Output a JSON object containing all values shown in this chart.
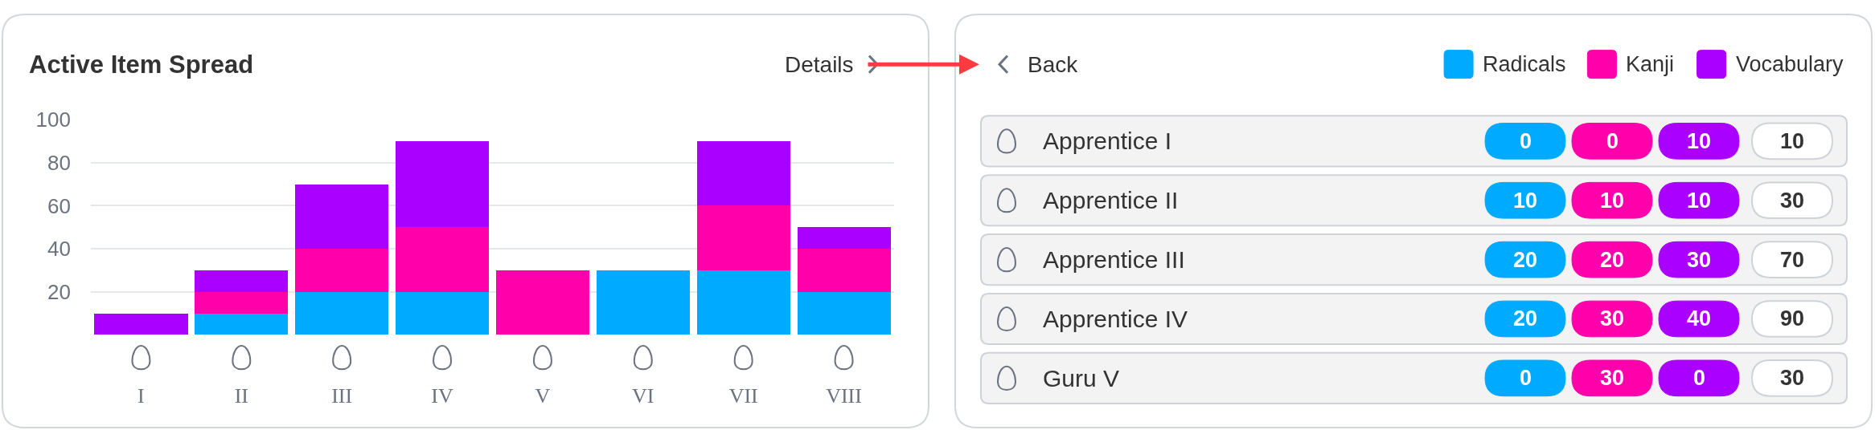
{
  "chart_data": [
    {
      "type": "bar",
      "title": "Active Item Spread",
      "annotations": [
        "Details"
      ],
      "categories": [
        "I",
        "II",
        "III",
        "IV",
        "V",
        "VI",
        "VII",
        "VIII"
      ],
      "stacked": true,
      "series": [
        {
          "color": "#00aaff",
          "values": [
            null,
            10,
            20,
            20,
            null,
            30,
            30,
            20
          ]
        },
        {
          "color": "#ff00aa",
          "values": [
            null,
            10,
            20,
            30,
            30,
            null,
            30,
            20
          ]
        },
        {
          "color": "#aa00ff",
          "values": [
            10,
            10,
            30,
            40,
            null,
            null,
            30,
            10
          ]
        }
      ],
      "ylim": [
        0,
        100
      ],
      "yticks": [
        20,
        40,
        60,
        80,
        100
      ],
      "grid": "y"
    },
    {
      "type": "other",
      "annotations": [
        "Back"
      ],
      "categories": [
        "Apprentice I",
        "Apprentice II",
        "Apprentice III",
        "Apprentice IV",
        "Guru V"
      ],
      "series": [
        {
          "name": "Radicals",
          "color": "#00aaff",
          "values": [
            0,
            10,
            20,
            20,
            0
          ]
        },
        {
          "name": "Kanji",
          "color": "#ff00aa",
          "values": [
            0,
            10,
            20,
            30,
            30
          ]
        },
        {
          "name": "Vocabulary",
          "color": "#aa00ff",
          "values": [
            10,
            10,
            30,
            40,
            0
          ]
        }
      ],
      "totals": [
        "10",
        "30",
        "70",
        "90",
        "30"
      ],
      "data_labels": true,
      "legend": "top right"
    }
  ]
}
